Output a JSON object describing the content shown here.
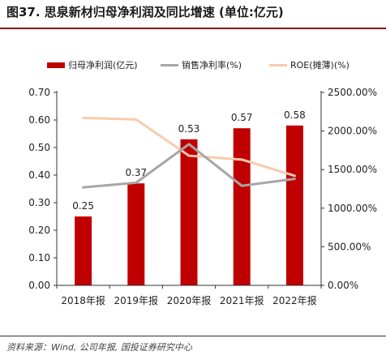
{
  "header": {
    "title": "图37. 思泉新材归母净利润及同比增速 (单位:亿元)"
  },
  "footer": {
    "source": "资料来源：Wind, 公司年报, 国投证券研究中心"
  },
  "colors": {
    "bar": "#c00000",
    "margin_line": "#a6a6a6",
    "roe_line": "#f8cbad",
    "title_rule": "#8a0d14"
  },
  "chart_data": {
    "type": "bar",
    "categories": [
      "2018年报",
      "2019年报",
      "2020年报",
      "2021年报",
      "2022年报"
    ],
    "series": [
      {
        "name": "归母净利润(亿元)",
        "type": "bar",
        "axis": "left",
        "values": [
          0.25,
          0.37,
          0.53,
          0.57,
          0.58
        ],
        "data_labels": [
          "0.25",
          "0.37",
          "0.53",
          "0.57",
          "0.58"
        ]
      },
      {
        "name": "销售净利率(%)",
        "type": "line",
        "axis": "right",
        "values": [
          1270,
          1330,
          1830,
          1290,
          1380
        ]
      },
      {
        "name": "ROE(摊薄)(%)",
        "type": "line",
        "axis": "right",
        "values": [
          2170,
          2150,
          1680,
          1630,
          1420
        ]
      }
    ],
    "left_axis": {
      "ylim": [
        0,
        0.7
      ],
      "ticks": [
        "0.00",
        "0.10",
        "0.20",
        "0.30",
        "0.40",
        "0.50",
        "0.60",
        "0.70"
      ]
    },
    "right_axis": {
      "ylim": [
        0,
        2500
      ],
      "ticks": [
        "0.00%",
        "500.00%",
        "1000.00%",
        "1500.00%",
        "2000.00%",
        "2500.00%"
      ]
    },
    "legend_position": "top",
    "grid": false
  }
}
